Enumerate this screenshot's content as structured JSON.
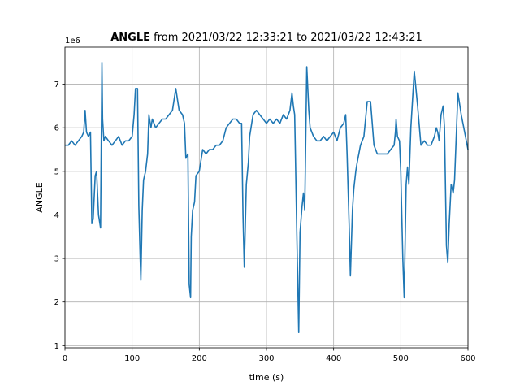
{
  "chart_data": {
    "type": "line",
    "title_bold": "ANGLE",
    "title_rest": " from 2021/03/22 12:33:21 to 2021/03/22 12:43:21",
    "xlabel": "time (s)",
    "ylabel": "ANGLE",
    "offset_label": "1e6",
    "xlim": [
      0,
      600
    ],
    "ylim": [
      0.95,
      7.85
    ],
    "xticks": [
      0,
      100,
      200,
      300,
      400,
      500,
      600
    ],
    "xtick_labels": [
      "0",
      "100",
      "200",
      "300",
      "400",
      "500",
      "600"
    ],
    "yticks": [
      1,
      2,
      3,
      4,
      5,
      6,
      7
    ],
    "ytick_labels": [
      "1",
      "2",
      "3",
      "4",
      "5",
      "6",
      "7"
    ],
    "grid": true,
    "line_color": "#1f77b4",
    "series": [
      {
        "x": [
          0,
          5,
          10,
          15,
          20,
          25,
          28,
          30,
          32,
          35,
          38,
          40,
          42,
          45,
          47,
          50,
          53,
          55,
          56,
          58,
          60,
          65,
          70,
          75,
          80,
          85,
          90,
          95,
          100,
          103,
          105,
          108,
          110,
          112,
          113,
          115,
          117,
          120,
          123,
          125,
          128,
          130,
          135,
          140,
          145,
          150,
          155,
          160,
          165,
          170,
          175,
          178,
          180,
          183,
          185,
          187,
          188,
          190,
          193,
          195,
          200,
          205,
          210,
          215,
          220,
          225,
          230,
          235,
          240,
          245,
          250,
          255,
          260,
          263,
          265,
          267,
          270,
          273,
          275,
          280,
          285,
          290,
          295,
          300,
          305,
          310,
          315,
          320,
          325,
          330,
          335,
          338,
          340,
          342,
          343,
          345,
          348,
          350,
          353,
          355,
          357,
          360,
          363,
          365,
          370,
          375,
          380,
          385,
          390,
          395,
          400,
          405,
          410,
          415,
          418,
          420,
          423,
          425,
          428,
          430,
          433,
          435,
          440,
          445,
          450,
          455,
          460,
          465,
          470,
          475,
          480,
          485,
          490,
          492,
          493,
          495,
          498,
          500,
          503,
          505,
          508,
          510,
          512,
          515,
          520,
          525,
          530,
          535,
          540,
          545,
          550,
          553,
          555,
          557,
          560,
          563,
          565,
          568,
          570,
          572,
          575,
          578,
          580,
          585,
          590,
          595,
          600
        ],
        "y": [
          5.6,
          5.6,
          5.7,
          5.6,
          5.7,
          5.8,
          5.9,
          6.4,
          5.9,
          5.8,
          5.9,
          3.8,
          3.9,
          4.9,
          5.0,
          4.0,
          3.7,
          7.5,
          6.2,
          5.7,
          5.8,
          5.7,
          5.6,
          5.7,
          5.8,
          5.6,
          5.7,
          5.7,
          5.8,
          6.3,
          6.9,
          6.9,
          4.2,
          3.0,
          2.5,
          4.1,
          4.8,
          5.0,
          5.4,
          6.3,
          6.0,
          6.2,
          6.0,
          6.1,
          6.2,
          6.2,
          6.3,
          6.4,
          6.9,
          6.4,
          6.3,
          6.1,
          5.3,
          5.4,
          2.4,
          2.1,
          3.5,
          4.1,
          4.3,
          4.9,
          5.0,
          5.5,
          5.4,
          5.5,
          5.5,
          5.6,
          5.6,
          5.7,
          6.0,
          6.1,
          6.2,
          6.2,
          6.1,
          6.1,
          4.0,
          2.8,
          4.7,
          5.2,
          5.8,
          6.3,
          6.4,
          6.3,
          6.2,
          6.1,
          6.2,
          6.1,
          6.2,
          6.1,
          6.3,
          6.2,
          6.4,
          6.8,
          6.5,
          6.3,
          5.5,
          3.7,
          1.3,
          3.6,
          4.2,
          4.5,
          4.1,
          7.4,
          6.4,
          6.0,
          5.8,
          5.7,
          5.7,
          5.8,
          5.7,
          5.8,
          5.9,
          5.7,
          6.0,
          6.1,
          6.3,
          5.4,
          3.8,
          2.6,
          4.1,
          4.6,
          5.0,
          5.2,
          5.6,
          5.8,
          6.6,
          6.6,
          5.6,
          5.4,
          5.4,
          5.4,
          5.4,
          5.5,
          5.6,
          5.9,
          6.2,
          5.8,
          5.7,
          5.0,
          3.0,
          2.1,
          4.7,
          5.1,
          4.7,
          6.0,
          7.3,
          6.5,
          5.6,
          5.7,
          5.6,
          5.6,
          5.8,
          6.0,
          5.9,
          5.7,
          6.3,
          6.5,
          6.0,
          3.3,
          2.9,
          3.8,
          4.7,
          4.5,
          4.8,
          6.8,
          6.3,
          5.9,
          5.5
        ]
      }
    ]
  }
}
